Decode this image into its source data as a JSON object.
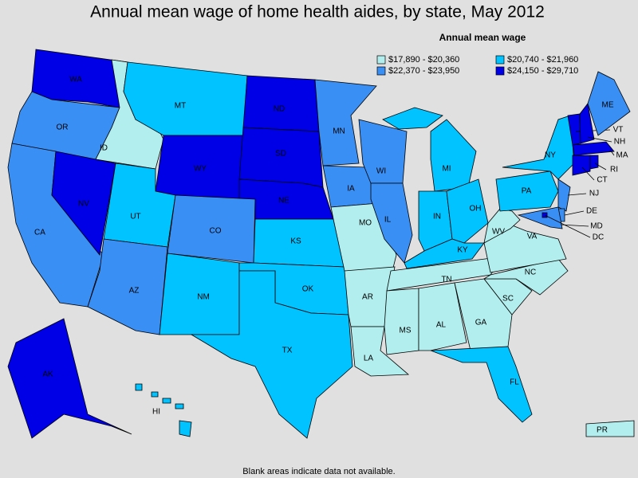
{
  "title": "Annual mean wage of home health aides, by state, May 2012",
  "legend": {
    "title": "Annual mean wage",
    "items": [
      {
        "label": "$17,890 - $20,360",
        "color": "#b3eeee"
      },
      {
        "label": "$20,740 - $21,960",
        "color": "#00c3ff"
      },
      {
        "label": "$22,370 - $23,950",
        "color": "#3a8ff5"
      },
      {
        "label": "$24,150 - $29,710",
        "color": "#0000e6"
      }
    ]
  },
  "states": [
    {
      "label": "WA",
      "class": 3
    },
    {
      "label": "OR",
      "class": 2
    },
    {
      "label": "ID",
      "class": 0
    },
    {
      "label": "MT",
      "class": 1
    },
    {
      "label": "WY",
      "class": 3
    },
    {
      "label": "ND",
      "class": 3
    },
    {
      "label": "SD",
      "class": 3
    },
    {
      "label": "NE",
      "class": 3
    },
    {
      "label": "CA",
      "class": 2
    },
    {
      "label": "NV",
      "class": 3
    },
    {
      "label": "UT",
      "class": 1
    },
    {
      "label": "AZ",
      "class": 2
    },
    {
      "label": "CO",
      "class": 2
    },
    {
      "label": "NM",
      "class": 1
    },
    {
      "label": "KS",
      "class": 1
    },
    {
      "label": "OK",
      "class": 1
    },
    {
      "label": "TX",
      "class": 1
    },
    {
      "label": "MN",
      "class": 2
    },
    {
      "label": "IA",
      "class": 2
    },
    {
      "label": "MO",
      "class": 0
    },
    {
      "label": "AR",
      "class": 0
    },
    {
      "label": "LA",
      "class": 0
    },
    {
      "label": "WI",
      "class": 2
    },
    {
      "label": "IL",
      "class": 2
    },
    {
      "label": "MI",
      "class": 1
    },
    {
      "label": "IN",
      "class": 1
    },
    {
      "label": "OH",
      "class": 1
    },
    {
      "label": "KY",
      "class": 1
    },
    {
      "label": "TN",
      "class": 0
    },
    {
      "label": "MS",
      "class": 0
    },
    {
      "label": "AL",
      "class": 0
    },
    {
      "label": "GA",
      "class": 0
    },
    {
      "label": "FL",
      "class": 1
    },
    {
      "label": "SC",
      "class": 0
    },
    {
      "label": "NC",
      "class": 0
    },
    {
      "label": "VA",
      "class": 0
    },
    {
      "label": "WV",
      "class": 0
    },
    {
      "label": "PA",
      "class": 1
    },
    {
      "label": "NY",
      "class": 1
    },
    {
      "label": "NJ",
      "class": 2
    },
    {
      "label": "DE",
      "class": 2
    },
    {
      "label": "MD",
      "class": 2
    },
    {
      "label": "DC",
      "class": 3
    },
    {
      "label": "VT",
      "class": 3
    },
    {
      "label": "NH",
      "class": 3
    },
    {
      "label": "ME",
      "class": 2
    },
    {
      "label": "MA",
      "class": 3
    },
    {
      "label": "CT",
      "class": 3
    },
    {
      "label": "RI",
      "class": 3
    },
    {
      "label": "AK",
      "class": 3
    },
    {
      "label": "HI",
      "class": 1
    },
    {
      "label": "PR",
      "class": 0
    }
  ],
  "note": "Blank areas indicate data not available."
}
